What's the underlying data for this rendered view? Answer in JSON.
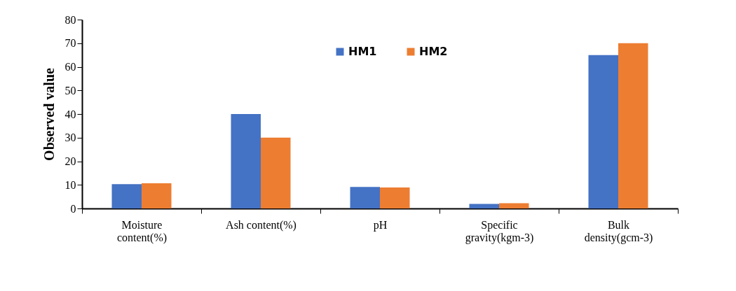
{
  "chart_data": {
    "type": "bar",
    "ylabel": "Observed value",
    "categories": [
      "Moisture content(%)",
      "Ash content(%)",
      "pH",
      "Specific gravity(kgm-3)",
      "Bulk density(gcm-3)"
    ],
    "series": [
      {
        "name": "HM1",
        "color": "#4472c4",
        "values": [
          10.3,
          40,
          9.1,
          1.9,
          65
        ]
      },
      {
        "name": "HM2",
        "color": "#ed7d31",
        "values": [
          10.7,
          30,
          8.9,
          2.2,
          70
        ]
      }
    ],
    "ylim": [
      0,
      80
    ],
    "yticks": [
      0,
      10,
      20,
      30,
      40,
      50,
      60,
      70,
      80
    ],
    "grid": false,
    "legend": "top"
  }
}
